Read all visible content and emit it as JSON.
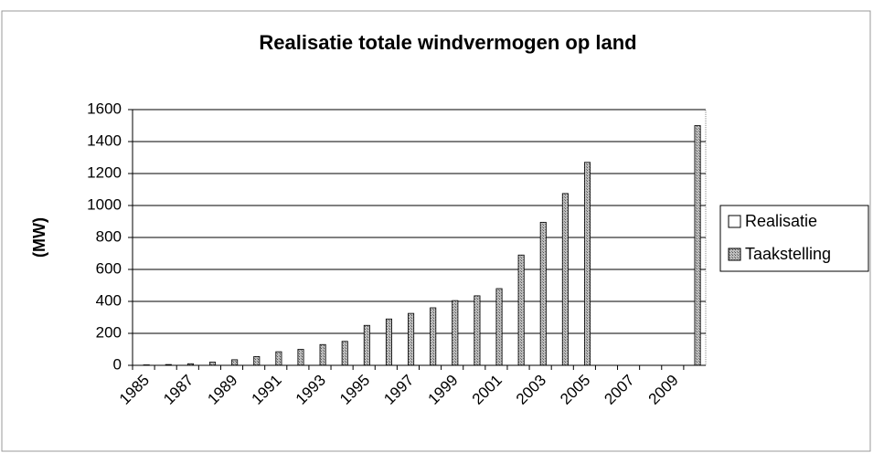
{
  "chart_data": {
    "type": "bar",
    "title": "Realisatie totale windvermogen op land",
    "y_label": "(MW)",
    "categories": [
      "1985",
      null,
      "1987",
      null,
      "1989",
      null,
      "1991",
      null,
      "1993",
      null,
      "1995",
      null,
      "1997",
      null,
      "1999",
      null,
      "2001",
      null,
      "2003",
      null,
      "2005",
      null,
      "2007",
      null,
      "2009",
      null
    ],
    "series": [
      {
        "name": "Realisatie",
        "color": "#ffffff",
        "values": [
          null,
          null,
          null,
          null,
          null,
          null,
          null,
          null,
          null,
          null,
          null,
          null,
          null,
          null,
          null,
          null,
          null,
          null,
          null,
          null,
          null,
          null,
          null,
          null,
          null,
          null
        ]
      },
      {
        "name": "Taakstelling",
        "color": "#8c8c8c",
        "values": [
          3,
          5,
          10,
          20,
          35,
          55,
          85,
          100,
          130,
          150,
          250,
          290,
          325,
          360,
          405,
          435,
          480,
          690,
          895,
          1075,
          1270,
          null,
          null,
          null,
          null,
          1500
        ]
      }
    ],
    "ylim": [
      0,
      1600
    ],
    "yticks": [
      0,
      200,
      400,
      600,
      800,
      1000,
      1200,
      1400,
      1600
    ],
    "grid": true,
    "legend": "right"
  }
}
